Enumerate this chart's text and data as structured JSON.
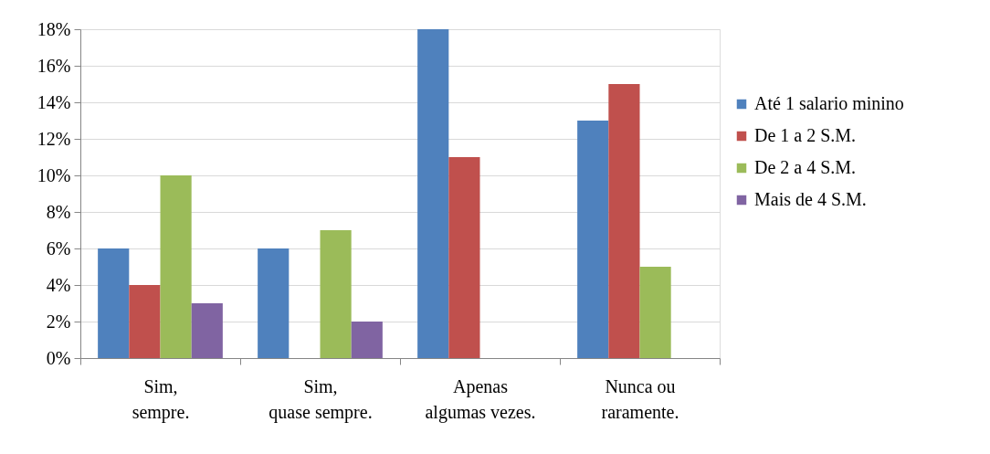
{
  "chart_data": {
    "type": "bar",
    "categories": [
      "Sim,\nsempre.",
      "Sim,\nquase sempre.",
      "Apenas\nalgumas vezes.",
      "Nunca ou\nraramente."
    ],
    "series": [
      {
        "name": "Até 1 salario minino",
        "color": "#4f81bd",
        "values": [
          6,
          6,
          18,
          13
        ]
      },
      {
        "name": "De 1 a 2 S.M.",
        "color": "#c0504d",
        "values": [
          4,
          null,
          11,
          15
        ]
      },
      {
        "name": "De 2 a 4 S.M.",
        "color": "#9bbb59",
        "values": [
          10,
          7,
          null,
          5
        ]
      },
      {
        "name": "Mais de 4 S.M.",
        "color": "#8064a2",
        "values": [
          3,
          2,
          null,
          null
        ]
      }
    ],
    "ylim": [
      0,
      18
    ],
    "yticks": [
      {
        "value": 0,
        "label": "0%"
      },
      {
        "value": 2,
        "label": "2%"
      },
      {
        "value": 4,
        "label": "4%"
      },
      {
        "value": 6,
        "label": "6%"
      },
      {
        "value": 8,
        "label": "8%"
      },
      {
        "value": 10,
        "label": "10%"
      },
      {
        "value": 12,
        "label": "12%"
      },
      {
        "value": 14,
        "label": "14%"
      },
      {
        "value": 16,
        "label": "16%"
      },
      {
        "value": 18,
        "label": "18%"
      }
    ],
    "grid": "y",
    "legend": "right"
  }
}
